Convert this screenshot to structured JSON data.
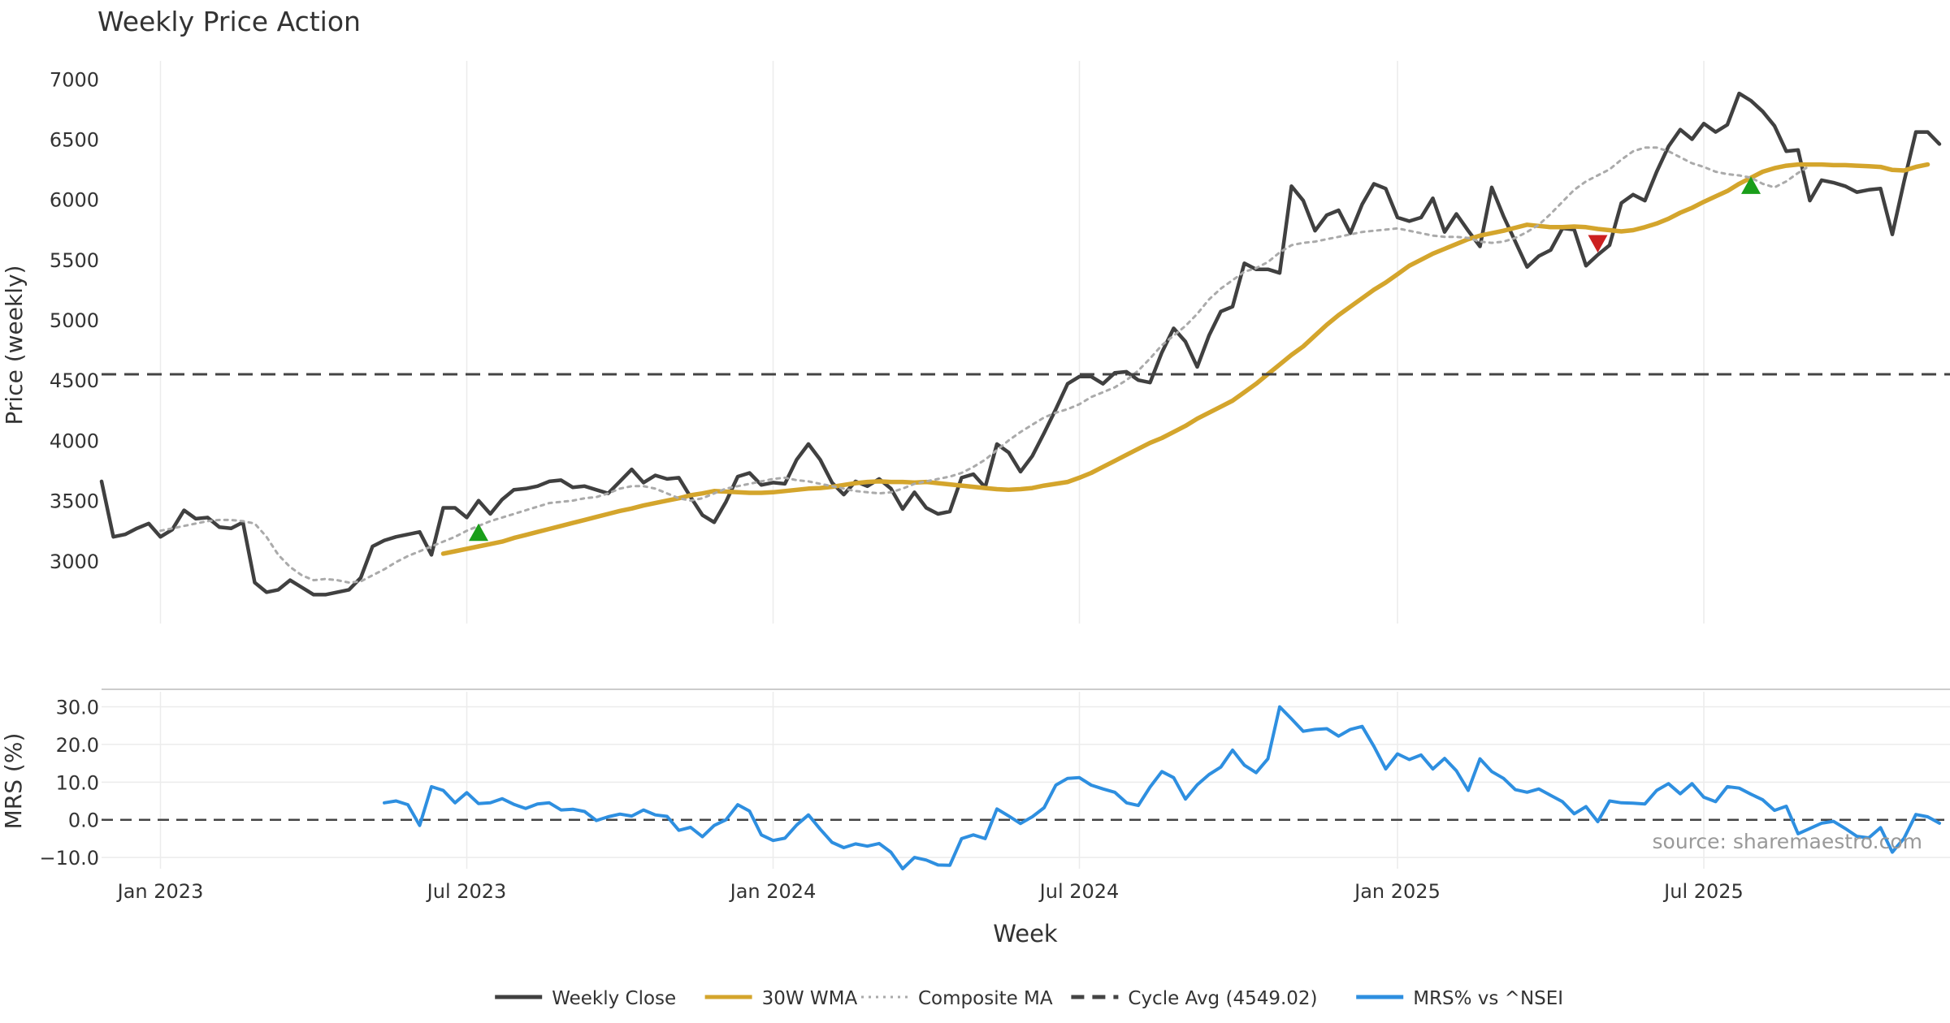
{
  "chart_data": [
    {
      "type": "line",
      "title": "Weekly Price Action",
      "ylabel": "Price (weekly)",
      "xlabel": "",
      "ylim": [
        2480,
        7150
      ],
      "yticks": [
        3000,
        3500,
        4000,
        4500,
        5000,
        5500,
        6000,
        6500,
        7000
      ],
      "grid": true,
      "x_start": "2022-11-28",
      "weeks": 155,
      "series": [
        {
          "name": "Weekly Close",
          "color": "#404040",
          "style": "solid",
          "start_index": 0,
          "values": [
            3660,
            3200,
            3220,
            3270,
            3310,
            3200,
            3260,
            3420,
            3350,
            3360,
            3280,
            3270,
            3320,
            2820,
            2740,
            2760,
            2840,
            2780,
            2720,
            2720,
            2740,
            2760,
            2860,
            3120,
            3170,
            3200,
            3220,
            3240,
            3050,
            3440,
            3440,
            3360,
            3500,
            3390,
            3510,
            3590,
            3600,
            3620,
            3660,
            3670,
            3610,
            3620,
            3590,
            3560,
            3660,
            3760,
            3650,
            3710,
            3680,
            3690,
            3530,
            3380,
            3320,
            3490,
            3700,
            3730,
            3630,
            3650,
            3640,
            3840,
            3970,
            3840,
            3650,
            3550,
            3660,
            3620,
            3680,
            3600,
            3430,
            3570,
            3440,
            3390,
            3410,
            3690,
            3720,
            3610,
            3970,
            3900,
            3740,
            3870,
            4060,
            4260,
            4470,
            4530,
            4530,
            4470,
            4560,
            4570,
            4500,
            4480,
            4730,
            4930,
            4820,
            4610,
            4870,
            5070,
            5110,
            5470,
            5420,
            5420,
            5390,
            6110,
            5990,
            5740,
            5870,
            5910,
            5720,
            5960,
            6130,
            6090,
            5850,
            5820,
            5850,
            6010,
            5730,
            5880,
            5740,
            5610,
            6100,
            5860,
            5650,
            5440,
            5530,
            5580,
            5760,
            5750,
            5450,
            5540,
            5620,
            5970,
            6040,
            5990,
            6230,
            6440,
            6580,
            6500,
            6630,
            6560,
            6620,
            6880,
            6820,
            6730,
            6610,
            6400,
            6410,
            5990,
            6160,
            6140,
            6110,
            6060,
            6080,
            6090,
            5710,
            6150,
            6560,
            6560,
            6460
          ]
        },
        {
          "name": "30W WMA",
          "color": "#d4a52c",
          "style": "solid",
          "start_index": 29,
          "values": [
            3060,
            3080,
            3100,
            3120,
            3140,
            3160,
            3190,
            3215,
            3240,
            3265,
            3290,
            3315,
            3340,
            3365,
            3390,
            3415,
            3435,
            3460,
            3480,
            3500,
            3520,
            3545,
            3560,
            3580,
            3575,
            3570,
            3565,
            3565,
            3570,
            3580,
            3590,
            3600,
            3605,
            3615,
            3630,
            3645,
            3655,
            3660,
            3655,
            3655,
            3650,
            3655,
            3645,
            3635,
            3625,
            3615,
            3605,
            3595,
            3590,
            3595,
            3605,
            3625,
            3640,
            3655,
            3690,
            3730,
            3780,
            3830,
            3880,
            3930,
            3980,
            4020,
            4070,
            4120,
            4180,
            4230,
            4280,
            4330,
            4400,
            4470,
            4550,
            4630,
            4710,
            4780,
            4870,
            4960,
            5040,
            5110,
            5180,
            5250,
            5310,
            5380,
            5450,
            5500,
            5550,
            5590,
            5630,
            5670,
            5700,
            5720,
            5740,
            5765,
            5790,
            5780,
            5770,
            5770,
            5775,
            5770,
            5755,
            5745,
            5735,
            5745,
            5770,
            5800,
            5840,
            5890,
            5930,
            5980,
            6025,
            6070,
            6130,
            6180,
            6230,
            6260,
            6280,
            6290,
            6290,
            6290,
            6285,
            6285,
            6280,
            6275,
            6270,
            6245,
            6240,
            6270,
            6290
          ]
        },
        {
          "name": "Composite MA",
          "color": "#aaaaaa",
          "style": "dotted",
          "start_index": 5,
          "values": [
            3250,
            3270,
            3290,
            3310,
            3330,
            3340,
            3340,
            3330,
            3310,
            3200,
            3050,
            2950,
            2880,
            2840,
            2850,
            2840,
            2820,
            2830,
            2880,
            2930,
            2990,
            3040,
            3080,
            3120,
            3160,
            3200,
            3250,
            3290,
            3330,
            3360,
            3390,
            3420,
            3450,
            3480,
            3490,
            3500,
            3520,
            3530,
            3560,
            3600,
            3620,
            3620,
            3600,
            3560,
            3520,
            3500,
            3520,
            3560,
            3600,
            3620,
            3640,
            3660,
            3680,
            3690,
            3670,
            3660,
            3640,
            3620,
            3600,
            3580,
            3570,
            3560,
            3570,
            3600,
            3640,
            3660,
            3680,
            3700,
            3730,
            3780,
            3840,
            3920,
            4000,
            4070,
            4130,
            4190,
            4230,
            4260,
            4300,
            4360,
            4400,
            4440,
            4500,
            4580,
            4680,
            4790,
            4870,
            4950,
            5050,
            5170,
            5260,
            5330,
            5400,
            5430,
            5480,
            5560,
            5620,
            5640,
            5650,
            5670,
            5690,
            5710,
            5730,
            5740,
            5750,
            5760,
            5740,
            5720,
            5700,
            5690,
            5690,
            5680,
            5650,
            5640,
            5650,
            5680,
            5730,
            5790,
            5880,
            5980,
            6080,
            6150,
            6200,
            6250,
            6330,
            6400,
            6430,
            6430,
            6400,
            6350,
            6300,
            6270,
            6230,
            6210,
            6200,
            6180,
            6130,
            6100,
            6150,
            6220,
            6280
          ]
        },
        {
          "name": "Cycle Avg (4549.02)",
          "color": "#444444",
          "style": "dashed",
          "constant": 4549.02
        }
      ],
      "markers": [
        {
          "type": "buy",
          "color": "#1a9e1a",
          "x_index": 32,
          "y": 3230
        },
        {
          "type": "sell",
          "color": "#cc2020",
          "x_index": 127,
          "y": 5640
        },
        {
          "type": "buy",
          "color": "#1a9e1a",
          "x_index": 140,
          "y": 6110
        }
      ]
    },
    {
      "type": "line",
      "title": "",
      "ylabel": "MRS (%)",
      "xlabel": "Week",
      "ylim": [
        -13,
        34
      ],
      "yticks": [
        30,
        20,
        10,
        0,
        -10
      ],
      "ytick_labels": [
        "30.0",
        "20.0",
        "10.0",
        "0.0",
        "−10.0"
      ],
      "xtick_labels": [
        "Jan 2023",
        "Jul 2023",
        "Jan 2024",
        "Jul 2024",
        "Jan 2025",
        "Jul 2025"
      ],
      "xtick_dates": [
        "2023-01-02",
        "2023-07-03",
        "2024-01-01",
        "2024-07-01",
        "2025-01-06",
        "2025-07-07"
      ],
      "zero_line": true,
      "series": [
        {
          "name": "MRS% vs ^NSEI",
          "color": "#2e8fe0",
          "style": "solid",
          "start_index": 24,
          "values": [
            4.5,
            5.0,
            4.0,
            -1.5,
            8.8,
            7.8,
            4.5,
            7.2,
            4.3,
            4.5,
            5.6,
            4.1,
            3.0,
            4.2,
            4.5,
            2.6,
            2.8,
            2.2,
            -0.2,
            0.8,
            1.5,
            1.0,
            2.6,
            1.3,
            0.9,
            -2.8,
            -2.0,
            -4.5,
            -1.5,
            0.0,
            4.0,
            2.3,
            -4.0,
            -5.5,
            -4.9,
            -1.4,
            1.3,
            -2.5,
            -6.0,
            -7.4,
            -6.4,
            -7.0,
            -6.3,
            -8.6,
            -13.0,
            -10.0,
            -10.7,
            -12.0,
            -12.1,
            -5.0,
            -4.0,
            -5.0,
            2.9,
            1.0,
            -1.0,
            0.8,
            3.2,
            9.2,
            11.0,
            11.2,
            9.2,
            8.2,
            7.3,
            4.5,
            3.8,
            8.7,
            12.8,
            11.2,
            5.5,
            9.3,
            12.0,
            14.0,
            18.5,
            14.5,
            12.5,
            16.2,
            30.0,
            26.8,
            23.5,
            24.0,
            24.2,
            22.2,
            24.0,
            24.8,
            19.5,
            13.5,
            17.5,
            16.0,
            17.2,
            13.5,
            16.3,
            13.0,
            7.8,
            16.2,
            12.8,
            11.0,
            8.0,
            7.3,
            8.2,
            6.5,
            4.8,
            1.6,
            3.5,
            -0.5,
            5.0,
            4.5,
            4.4,
            4.2,
            7.8,
            9.6,
            6.9,
            9.6,
            6.0,
            4.8,
            8.8,
            8.4,
            6.8,
            5.3,
            2.5,
            3.6,
            -3.7,
            -2.3,
            -0.9,
            -0.4,
            -2.3,
            -4.4,
            -4.8,
            -2.1,
            -8.6,
            -4.9,
            1.4,
            0.8,
            -0.9
          ]
        }
      ]
    }
  ],
  "annotation": "source: sharemaestro.com",
  "legend": {
    "placement": "bottom-center",
    "items": [
      {
        "label": "Weekly Close",
        "color": "#404040",
        "style": "solid"
      },
      {
        "label": "30W WMA",
        "color": "#d4a52c",
        "style": "solid"
      },
      {
        "label": "Composite MA",
        "color": "#aaaaaa",
        "style": "dotted"
      },
      {
        "label": "Cycle Avg (4549.02)",
        "color": "#444444",
        "style": "dashed"
      },
      {
        "label": "MRS% vs ^NSEI",
        "color": "#2e8fe0",
        "style": "solid"
      }
    ]
  }
}
